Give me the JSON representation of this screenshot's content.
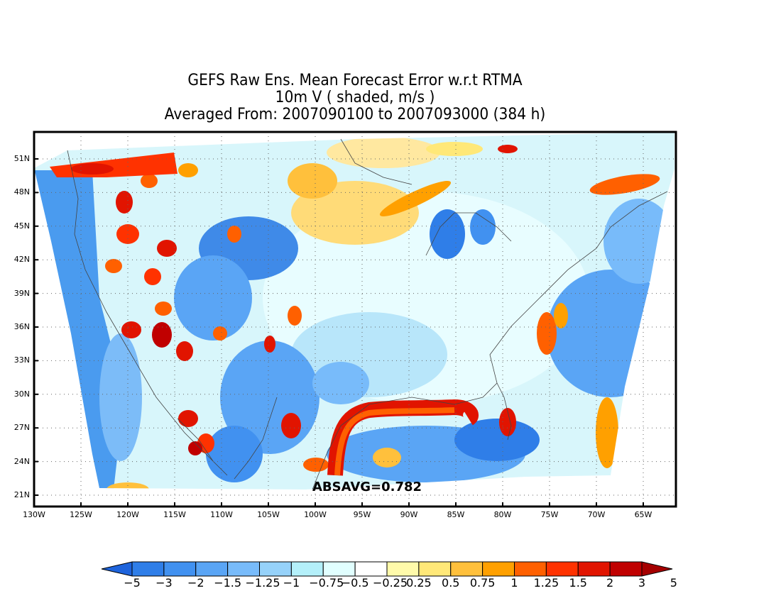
{
  "title": {
    "line1": "GEFS Raw Ens. Mean Forecast Error w.r.t RTMA",
    "line2": "10m V ( shaded, m/s )",
    "line3": "Averaged From: 2007090100 to 2007093000 (384 h)"
  },
  "absavg": "ABSAVG=0.782",
  "lat_labels": [
    "51N",
    "48N",
    "45N",
    "42N",
    "39N",
    "36N",
    "33N",
    "30N",
    "27N",
    "24N",
    "21N"
  ],
  "lon_labels": [
    "130W",
    "125W",
    "120W",
    "115W",
    "110W",
    "105W",
    "100W",
    "95W",
    "90W",
    "85W",
    "80W",
    "75W",
    "70W",
    "65W"
  ],
  "colorbar": {
    "colors": [
      "#1e64dc",
      "#2f7ee8",
      "#4191f0",
      "#5aa5f5",
      "#78bbfa",
      "#96d2fa",
      "#b4f0fa",
      "#e1ffff",
      "#ffffff",
      "#fffaaa",
      "#ffe878",
      "#ffc03c",
      "#ffa000",
      "#ff6000",
      "#ff3200",
      "#e11400",
      "#c00000",
      "#a50000"
    ],
    "labels": [
      "−5",
      "−3",
      "−2",
      "−1.5",
      "−1.25",
      "−1",
      "−0.75",
      "−0.5",
      "−0.25",
      "0.25",
      "0.5",
      "0.75",
      "1",
      "1.25",
      "1.5",
      "2",
      "3",
      "5"
    ]
  },
  "map_extent": {
    "lon_min": -130,
    "lon_max": -62,
    "lat_min": 20,
    "lat_max": 53
  }
}
